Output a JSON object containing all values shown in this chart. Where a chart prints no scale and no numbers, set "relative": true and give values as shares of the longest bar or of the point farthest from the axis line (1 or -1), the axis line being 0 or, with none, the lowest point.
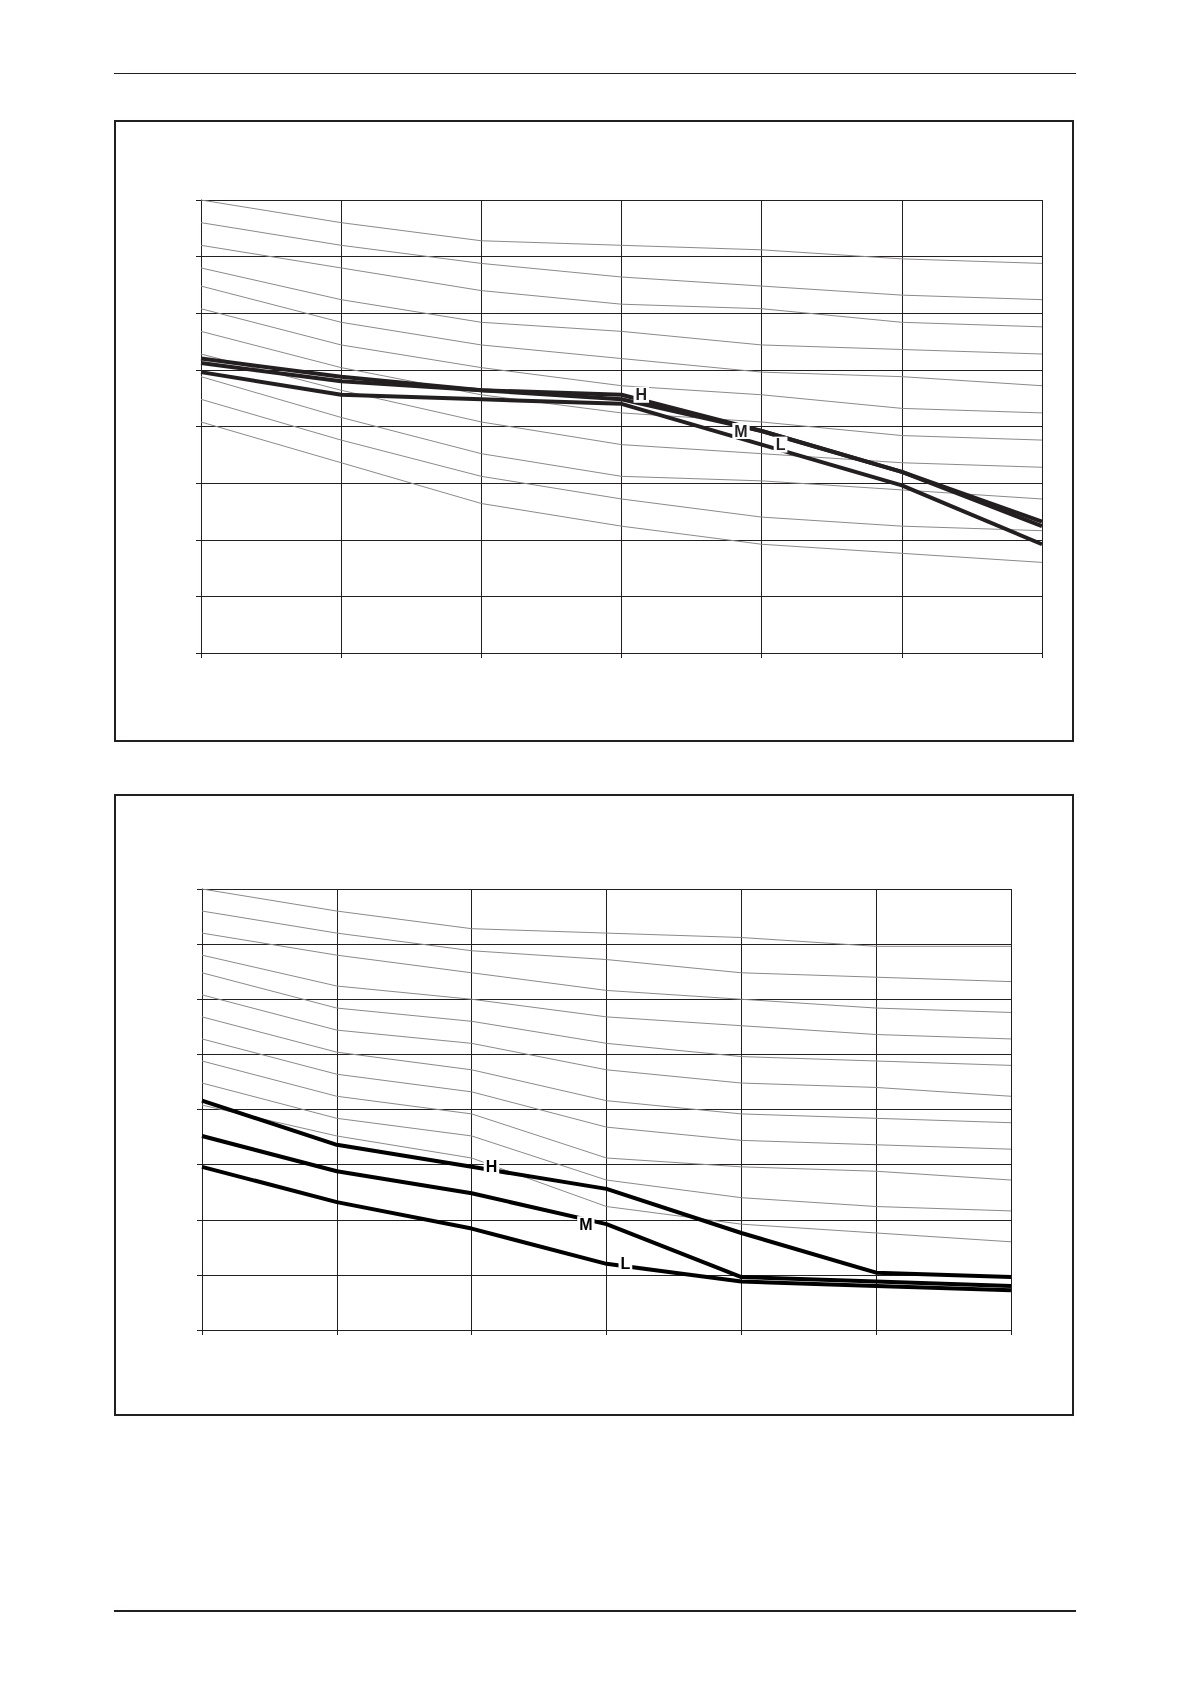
{
  "chart_data": [
    {
      "type": "line",
      "relative": true,
      "grid": true,
      "marker": "none",
      "categories": [
        null,
        null,
        null,
        null,
        null,
        null,
        null
      ],
      "series": [
        {
          "color": "#8a8a8a",
          "values": [
            1.0,
            0.95,
            0.91,
            0.9,
            0.89,
            0.87,
            0.86
          ]
        },
        {
          "color": "#8a8a8a",
          "values": [
            0.95,
            0.9,
            0.86,
            0.83,
            0.81,
            0.79,
            0.78
          ]
        },
        {
          "color": "#8a8a8a",
          "values": [
            0.9,
            0.85,
            0.8,
            0.77,
            0.76,
            0.73,
            0.72
          ]
        },
        {
          "color": "#8a8a8a",
          "values": [
            0.85,
            0.78,
            0.73,
            0.71,
            0.68,
            0.67,
            0.66
          ]
        },
        {
          "color": "#8a8a8a",
          "values": [
            0.81,
            0.73,
            0.68,
            0.65,
            0.62,
            0.61,
            0.59
          ]
        },
        {
          "color": "#8a8a8a",
          "values": [
            0.76,
            0.68,
            0.63,
            0.59,
            0.57,
            0.54,
            0.53
          ]
        },
        {
          "color": "#8a8a8a",
          "values": [
            0.71,
            0.63,
            0.57,
            0.53,
            0.51,
            0.48,
            0.47
          ]
        },
        {
          "color": "#8a8a8a",
          "values": [
            0.66,
            0.58,
            0.51,
            0.46,
            0.44,
            0.42,
            0.41
          ]
        },
        {
          "color": "#8a8a8a",
          "values": [
            0.61,
            0.52,
            0.44,
            0.39,
            0.38,
            0.36,
            0.34
          ]
        },
        {
          "color": "#8a8a8a",
          "values": [
            0.56,
            0.47,
            0.39,
            0.34,
            0.3,
            0.28,
            0.27
          ]
        },
        {
          "color": "#8a8a8a",
          "values": [
            0.51,
            0.42,
            0.33,
            0.28,
            0.24,
            0.22,
            0.2
          ]
        },
        {
          "name": "H",
          "color": "#231f20",
          "values": [
            0.65,
            0.61,
            0.58,
            0.57,
            0.49,
            0.4,
            0.29
          ]
        },
        {
          "name": "M",
          "color": "#231f20",
          "values": [
            0.64,
            0.6,
            0.58,
            0.56,
            0.49,
            0.4,
            0.28
          ]
        },
        {
          "name": "L",
          "color": "#231f20",
          "values": [
            0.62,
            0.57,
            0.56,
            0.55,
            0.46,
            0.37,
            0.24
          ]
        }
      ]
    },
    {
      "type": "line",
      "relative": true,
      "grid": true,
      "marker": "none",
      "categories": [
        null,
        null,
        null,
        null,
        null,
        null,
        null
      ],
      "series": [
        {
          "color": "#8a8a8a",
          "values": [
            1.0,
            0.95,
            0.91,
            0.9,
            0.89,
            0.87,
            0.87
          ]
        },
        {
          "color": "#8a8a8a",
          "values": [
            0.95,
            0.9,
            0.86,
            0.84,
            0.81,
            0.8,
            0.79
          ]
        },
        {
          "color": "#8a8a8a",
          "values": [
            0.9,
            0.85,
            0.81,
            0.77,
            0.75,
            0.73,
            0.72
          ]
        },
        {
          "color": "#8a8a8a",
          "values": [
            0.85,
            0.78,
            0.75,
            0.71,
            0.69,
            0.67,
            0.66
          ]
        },
        {
          "color": "#8a8a8a",
          "values": [
            0.81,
            0.73,
            0.7,
            0.65,
            0.62,
            0.61,
            0.6
          ]
        },
        {
          "color": "#8a8a8a",
          "values": [
            0.76,
            0.68,
            0.65,
            0.59,
            0.56,
            0.55,
            0.53
          ]
        },
        {
          "color": "#8a8a8a",
          "values": [
            0.71,
            0.63,
            0.59,
            0.52,
            0.49,
            0.48,
            0.47
          ]
        },
        {
          "color": "#8a8a8a",
          "values": [
            0.66,
            0.58,
            0.54,
            0.46,
            0.43,
            0.42,
            0.41
          ]
        },
        {
          "color": "#8a8a8a",
          "values": [
            0.61,
            0.53,
            0.49,
            0.39,
            0.37,
            0.36,
            0.34
          ]
        },
        {
          "color": "#8a8a8a",
          "values": [
            0.56,
            0.48,
            0.44,
            0.34,
            0.3,
            0.28,
            0.27
          ]
        },
        {
          "color": "#8a8a8a",
          "values": [
            0.51,
            0.44,
            0.39,
            0.28,
            0.24,
            0.22,
            0.2
          ]
        },
        {
          "name": "H",
          "color": "#000000",
          "values": [
            0.52,
            0.42,
            0.37,
            0.32,
            0.22,
            0.13,
            0.12
          ]
        },
        {
          "name": "M",
          "color": "#000000",
          "values": [
            0.44,
            0.36,
            0.31,
            0.24,
            0.12,
            0.11,
            0.1
          ]
        },
        {
          "name": "L",
          "color": "#000000",
          "values": [
            0.37,
            0.29,
            0.23,
            0.15,
            0.11,
            0.1,
            0.09
          ]
        }
      ]
    }
  ]
}
